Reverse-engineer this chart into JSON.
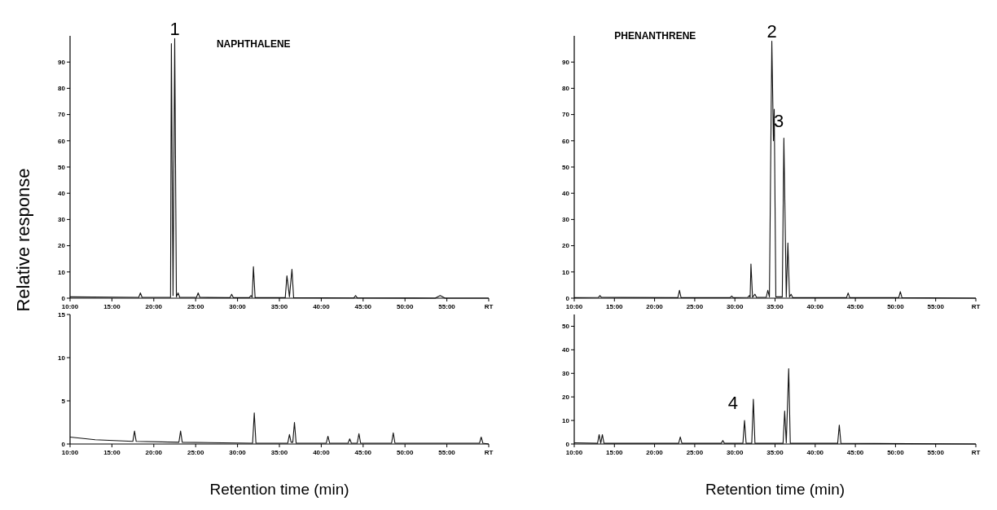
{
  "chart_data": [
    {
      "type": "line",
      "title": "NAPHTHALENE",
      "ylabel": "Relative response",
      "color": "#111111",
      "annotations": [
        {
          "text": "1",
          "x": 22.5,
          "y": 99
        }
      ],
      "x": [
        10,
        18.2,
        18.4,
        18.6,
        22.0,
        22.1,
        22.3,
        22.5,
        22.7,
        22.9,
        23.1,
        25.1,
        25.3,
        25.5,
        29.1,
        29.3,
        29.5,
        31.4,
        31.6,
        31.75,
        31.9,
        32.1,
        35.7,
        35.9,
        36.0,
        36.2,
        36.5,
        36.7,
        43.9,
        44.1,
        44.3,
        53.6,
        54.2,
        54.8,
        60
      ],
      "values": [
        0.5,
        0.3,
        2,
        0.3,
        0.3,
        97,
        1,
        99,
        0.5,
        2,
        0.3,
        0.3,
        2,
        0.3,
        0.2,
        1.5,
        0.2,
        0.2,
        1,
        0.3,
        12,
        0.2,
        0.2,
        8.5,
        6,
        0.5,
        11,
        0.2,
        0.1,
        1,
        0.1,
        0,
        1,
        0,
        0
      ],
      "xlim": [
        10,
        60
      ],
      "ylim": [
        0,
        100
      ],
      "xticks": [
        {
          "value": 10,
          "label": "10:00"
        },
        {
          "value": 15,
          "label": "15:00"
        },
        {
          "value": 20,
          "label": "20:00"
        },
        {
          "value": 25,
          "label": "25:00"
        },
        {
          "value": 30,
          "label": "30:00"
        },
        {
          "value": 35,
          "label": "35:00"
        },
        {
          "value": 40,
          "label": "40:00"
        },
        {
          "value": 45,
          "label": "45:00"
        },
        {
          "value": 50,
          "label": "50:00"
        },
        {
          "value": 55,
          "label": "55:00"
        },
        {
          "value": 60,
          "label": "RT"
        }
      ],
      "yticks": [
        0,
        10,
        20,
        30,
        40,
        50,
        60,
        70,
        80,
        90
      ]
    },
    {
      "type": "line",
      "title": "PHENANTHRENE",
      "color": "#111111",
      "annotations": [
        {
          "text": "2",
          "x": 34.6,
          "y": 98
        },
        {
          "text": "3",
          "x": 36.1,
          "y": 61
        }
      ],
      "x": [
        10,
        13.0,
        13.2,
        13.4,
        22.9,
        23.1,
        23.3,
        29.4,
        29.6,
        29.8,
        31.6,
        31.8,
        31.9,
        32.0,
        32.2,
        32.5,
        32.7,
        33.9,
        34.1,
        34.3,
        34.6,
        34.8,
        34.9,
        35.1,
        35.9,
        36.1,
        36.4,
        36.6,
        36.8,
        37.0,
        37.2,
        43.9,
        44.1,
        44.3,
        50.4,
        50.6,
        50.8,
        60
      ],
      "values": [
        0.2,
        0.3,
        1,
        0.3,
        0.2,
        3,
        0.2,
        0.2,
        0.8,
        0.2,
        0.3,
        1,
        0.3,
        13,
        0.3,
        1.5,
        0.3,
        0.3,
        3,
        0.5,
        98,
        60,
        72,
        0.5,
        0.5,
        61,
        0.5,
        21,
        0.5,
        1.5,
        0.2,
        0.2,
        2,
        0.2,
        0.2,
        2.5,
        0.2,
        0
      ],
      "xlim": [
        10,
        60
      ],
      "ylim": [
        0,
        100
      ],
      "xticks": [
        {
          "value": 10,
          "label": "10:00"
        },
        {
          "value": 15,
          "label": "15:00"
        },
        {
          "value": 20,
          "label": "20:00"
        },
        {
          "value": 25,
          "label": "25:00"
        },
        {
          "value": 30,
          "label": "30:00"
        },
        {
          "value": 35,
          "label": "35:00"
        },
        {
          "value": 40,
          "label": "40:00"
        },
        {
          "value": 45,
          "label": "45:00"
        },
        {
          "value": 50,
          "label": "50:00"
        },
        {
          "value": 55,
          "label": "55:00"
        },
        {
          "value": 60,
          "label": "RT"
        }
      ],
      "yticks": [
        0,
        10,
        20,
        30,
        40,
        50,
        60,
        70,
        80,
        90
      ]
    },
    {
      "type": "line",
      "xlabel": "Retention time (min)",
      "color": "#111111",
      "x": [
        10,
        13,
        17.5,
        17.7,
        17.9,
        23.0,
        23.2,
        23.4,
        31.8,
        32.0,
        32.2,
        36.0,
        36.2,
        36.4,
        36.6,
        36.8,
        37.0,
        40.6,
        40.8,
        41.0,
        43.2,
        43.4,
        43.6,
        44.3,
        44.5,
        44.7,
        48.4,
        48.6,
        48.8,
        58.9,
        59.1,
        59.3,
        60
      ],
      "values": [
        0.8,
        0.5,
        0.3,
        1.5,
        0.3,
        0.2,
        1.5,
        0.2,
        0.1,
        3.6,
        0.1,
        0.1,
        1.1,
        0.2,
        0.2,
        2.5,
        0.1,
        0.1,
        0.9,
        0.1,
        0.1,
        0.6,
        0.1,
        0.1,
        1.2,
        0.1,
        0.1,
        1.3,
        0.1,
        0.1,
        0.8,
        0.1,
        0
      ],
      "xlim": [
        10,
        60
      ],
      "ylim": [
        0,
        15
      ],
      "xticks": [
        {
          "value": 10,
          "label": "10:00"
        },
        {
          "value": 15,
          "label": "15:00"
        },
        {
          "value": 20,
          "label": "20:00"
        },
        {
          "value": 25,
          "label": "25:00"
        },
        {
          "value": 30,
          "label": "30:00"
        },
        {
          "value": 35,
          "label": "35:00"
        },
        {
          "value": 40,
          "label": "40:00"
        },
        {
          "value": 45,
          "label": "45:00"
        },
        {
          "value": 50,
          "label": "50:00"
        },
        {
          "value": 55,
          "label": "55:00"
        },
        {
          "value": 60,
          "label": "RT"
        }
      ],
      "yticks": [
        0,
        5,
        10,
        15
      ]
    },
    {
      "type": "line",
      "xlabel": "Retention time (min)",
      "color": "#111111",
      "annotations": [
        {
          "text": "4",
          "x": 31.2,
          "y": 10
        }
      ],
      "x": [
        10,
        12.9,
        13.1,
        13.3,
        13.5,
        13.7,
        23.0,
        23.2,
        23.4,
        28.3,
        28.5,
        28.7,
        31.0,
        31.2,
        31.4,
        32.1,
        32.3,
        32.5,
        36.0,
        36.2,
        36.4,
        36.7,
        36.9,
        42.8,
        43.0,
        43.2,
        60
      ],
      "values": [
        0.5,
        0.3,
        4,
        0.3,
        4,
        0.3,
        0.3,
        3,
        0.3,
        0.3,
        1.5,
        0.3,
        0.3,
        10,
        0.3,
        0.3,
        19,
        0.3,
        0.3,
        14,
        0.5,
        32,
        0.3,
        0.3,
        8,
        0.3,
        0
      ],
      "xlim": [
        10,
        60
      ],
      "ylim": [
        0,
        55
      ],
      "xticks": [
        {
          "value": 10,
          "label": "10:00"
        },
        {
          "value": 15,
          "label": "15:00"
        },
        {
          "value": 20,
          "label": "20:00"
        },
        {
          "value": 25,
          "label": "25:00"
        },
        {
          "value": 30,
          "label": "30:00"
        },
        {
          "value": 35,
          "label": "35:00"
        },
        {
          "value": 40,
          "label": "40:00"
        },
        {
          "value": 45,
          "label": "45:00"
        },
        {
          "value": 50,
          "label": "50:00"
        },
        {
          "value": 55,
          "label": "55:00"
        },
        {
          "value": 60,
          "label": "RT"
        }
      ],
      "yticks": [
        0,
        10,
        20,
        30,
        40,
        50
      ]
    }
  ]
}
